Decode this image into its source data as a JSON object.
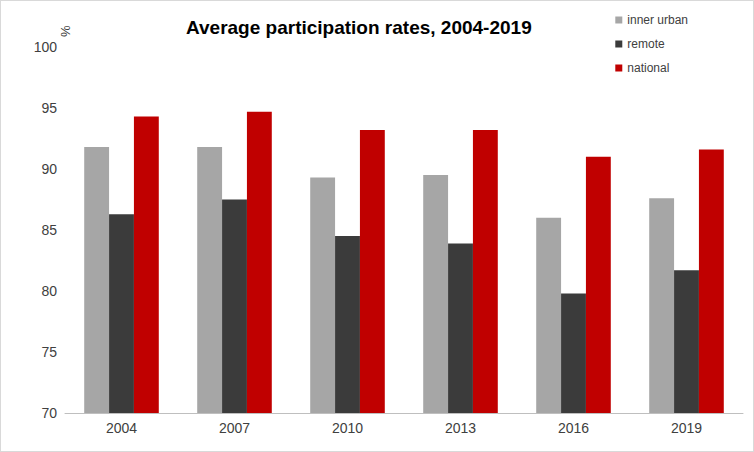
{
  "chart_data": {
    "type": "bar",
    "title": "Average participation rates, 2004-2019",
    "ylabel": "%",
    "categories": [
      "2004",
      "2007",
      "2010",
      "2013",
      "2016",
      "2019"
    ],
    "series": [
      {
        "name": "inner urban",
        "color": "#a6a6a6",
        "values": [
          91.8,
          91.8,
          89.3,
          89.5,
          86.0,
          87.6
        ]
      },
      {
        "name": "remote",
        "color": "#3b3b3b",
        "values": [
          86.3,
          87.5,
          84.5,
          83.9,
          79.8,
          81.7
        ]
      },
      {
        "name": "national",
        "color": "#c00000",
        "values": [
          94.3,
          94.7,
          93.2,
          93.2,
          91.0,
          91.6
        ]
      }
    ],
    "ylim": [
      70,
      100
    ],
    "yticks": [
      70,
      75,
      80,
      85,
      90,
      95,
      100
    ],
    "grid": false,
    "legend": "top-right"
  }
}
